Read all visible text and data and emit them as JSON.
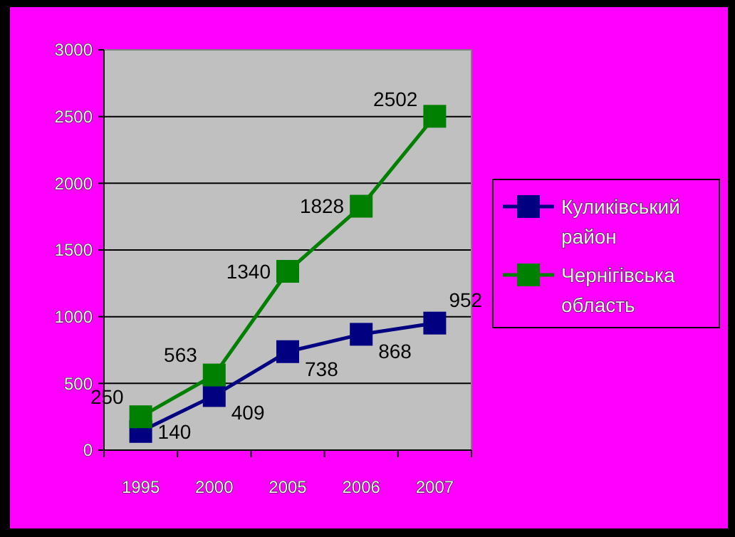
{
  "chart_data": {
    "type": "line",
    "categories": [
      "1995",
      "2000",
      "2005",
      "2006",
      "2007"
    ],
    "series": [
      {
        "name": "Куликівський район",
        "color": "#000080",
        "values": [
          140,
          409,
          738,
          868,
          952
        ]
      },
      {
        "name": "Чернігівська область",
        "color": "#008000",
        "values": [
          250,
          563,
          1340,
          1828,
          2502
        ]
      }
    ],
    "ylim": [
      0,
      3000
    ],
    "yticks": [
      0,
      500,
      1000,
      1500,
      2000,
      2500,
      3000
    ],
    "grid": "y",
    "legend": "right",
    "marker": "square",
    "data_labels": true
  }
}
